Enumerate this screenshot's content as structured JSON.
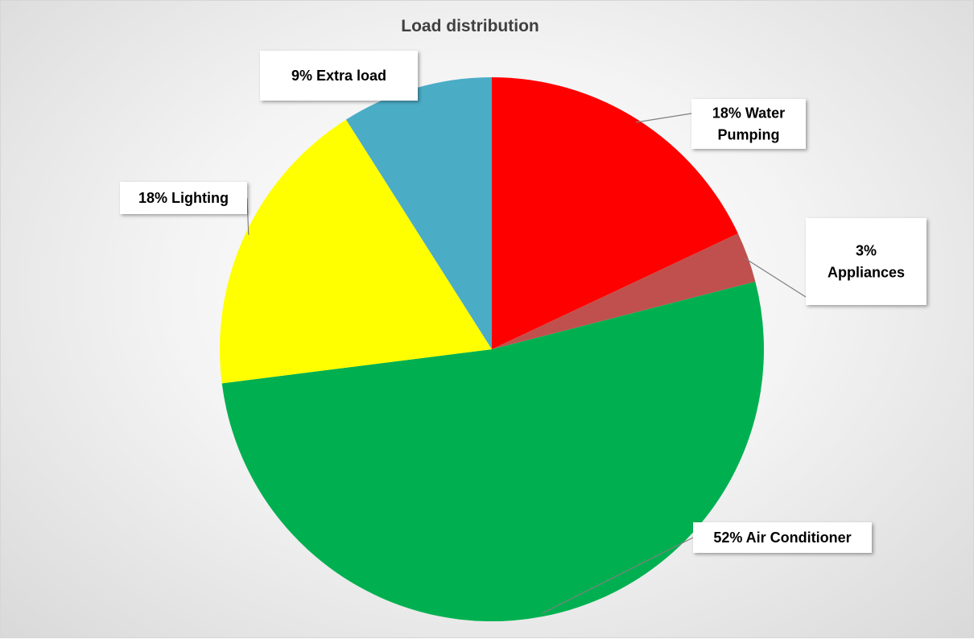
{
  "chart_data": {
    "type": "pie",
    "title": "Load distribution",
    "start_angle_deg": 0,
    "direction": "clockwise",
    "slices": [
      {
        "name": "Water Pumping",
        "value": 18,
        "label_lines": [
          "18% Water",
          "Pumping"
        ],
        "color": "#ff0000"
      },
      {
        "name": "Appliances",
        "value": 3,
        "label_lines": [
          "3%",
          "Appliances"
        ],
        "color": "#c0504d"
      },
      {
        "name": "Air Conditioner",
        "value": 52,
        "label_lines": [
          "52% Air Conditioner"
        ],
        "color": "#00b050"
      },
      {
        "name": "Lighting",
        "value": 18,
        "label_lines": [
          "18% Lighting"
        ],
        "color": "#ffff00"
      },
      {
        "name": "Extra load",
        "value": 9,
        "label_lines": [
          "9% Extra load"
        ],
        "color": "#4bacc6"
      }
    ],
    "legend": "none",
    "data_labels": "callouts"
  }
}
